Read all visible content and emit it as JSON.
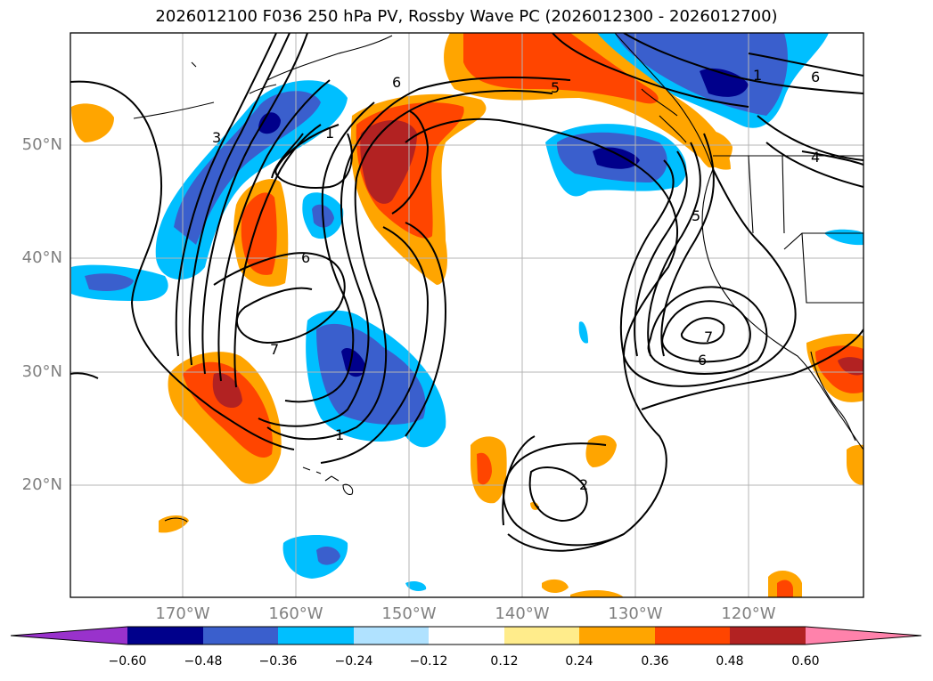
{
  "title": "2026012100 F036 250 hPa PV, Rossby Wave PC (2026012300 - 2026012700)",
  "lat_labels": [
    "50°N",
    "40°N",
    "30°N",
    "20°N"
  ],
  "lon_labels": [
    "170°W",
    "160°W",
    "150°W",
    "140°W",
    "130°W",
    "120°W"
  ],
  "colorbar": {
    "ticks": [
      "−0.60",
      "−0.48",
      "−0.36",
      "−0.24",
      "−0.12",
      "0.12",
      "0.24",
      "0.36",
      "0.48",
      "0.60"
    ],
    "colors": [
      "#9932cc",
      "#00008b",
      "#3a5fcd",
      "#00bfff",
      "#b0e2ff",
      "#ffffff",
      "#ffec8b",
      "#ffa500",
      "#ff4500",
      "#b22222",
      "#ff82ab"
    ]
  },
  "contour_labels": [
    "6",
    "5",
    "3",
    "1",
    "6",
    "7",
    "1",
    "5",
    "6",
    "4",
    "7",
    "6",
    "2",
    "1"
  ]
}
